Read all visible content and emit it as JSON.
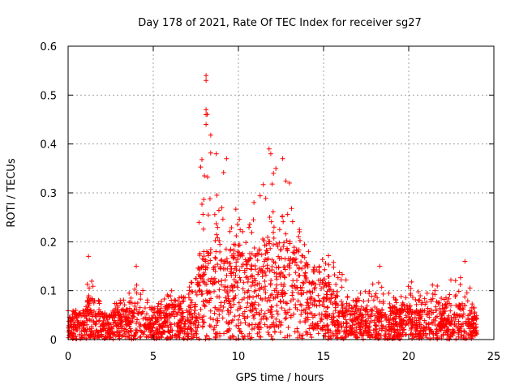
{
  "chart_data": {
    "type": "scatter",
    "title": "Day 178 of 2021, Rate Of TEC Index for receiver sg27",
    "xlabel": "GPS time / hours",
    "ylabel": "ROTI / TECUs",
    "xlim": [
      0,
      25
    ],
    "ylim": [
      0,
      0.6
    ],
    "xticks": [
      0,
      5,
      10,
      15,
      20,
      25
    ],
    "xtick_labels": [
      "0",
      "5",
      "10",
      "15",
      "20",
      "25"
    ],
    "yticks": [
      0,
      0.1,
      0.2,
      0.3,
      0.4,
      0.5,
      0.6
    ],
    "ytick_labels": [
      "0",
      "0.1",
      "0.2",
      "0.3",
      "0.4",
      "0.5",
      "0.6"
    ],
    "grid": true,
    "marker": "+",
    "color": "#ff0000",
    "series": [
      {
        "name": "ROTI",
        "x_range": [
          0,
          24
        ],
        "envelope": {
          "x": [
            0,
            0.5,
            1,
            1.2,
            1.5,
            2,
            2.5,
            3,
            3.5,
            4,
            4.5,
            5,
            5.5,
            6,
            6.5,
            7,
            7.5,
            8,
            8.5,
            9,
            9.5,
            10,
            10.5,
            11,
            11.5,
            12,
            12.5,
            13,
            13.5,
            14,
            14.5,
            15,
            15.5,
            16,
            16.5,
            17,
            17.5,
            18,
            18.5,
            19,
            19.5,
            20,
            20.5,
            21,
            21.5,
            22,
            22.5,
            23,
            23.5,
            24
          ],
          "typical": [
            0.04,
            0.05,
            0.06,
            0.09,
            0.08,
            0.05,
            0.05,
            0.06,
            0.06,
            0.08,
            0.05,
            0.05,
            0.06,
            0.07,
            0.07,
            0.09,
            0.1,
            0.18,
            0.17,
            0.16,
            0.17,
            0.18,
            0.16,
            0.17,
            0.2,
            0.2,
            0.2,
            0.2,
            0.18,
            0.15,
            0.14,
            0.12,
            0.1,
            0.08,
            0.07,
            0.06,
            0.06,
            0.06,
            0.06,
            0.06,
            0.06,
            0.07,
            0.06,
            0.06,
            0.06,
            0.07,
            0.07,
            0.07,
            0.07,
            0.04
          ],
          "peak": [
            0.06,
            0.06,
            0.08,
            0.17,
            0.12,
            0.07,
            0.07,
            0.08,
            0.09,
            0.15,
            0.11,
            0.07,
            0.08,
            0.1,
            0.1,
            0.11,
            0.13,
            0.54,
            0.38,
            0.37,
            0.3,
            0.26,
            0.25,
            0.32,
            0.39,
            0.37,
            0.36,
            0.32,
            0.24,
            0.2,
            0.18,
            0.21,
            0.17,
            0.14,
            0.12,
            0.1,
            0.1,
            0.12,
            0.14,
            0.1,
            0.09,
            0.14,
            0.1,
            0.09,
            0.12,
            0.11,
            0.13,
            0.16,
            0.12,
            0.05
          ]
        },
        "notable_points": [
          {
            "x": 8.1,
            "y": 0.54
          },
          {
            "x": 8.1,
            "y": 0.53
          },
          {
            "x": 8.1,
            "y": 0.47
          },
          {
            "x": 8.1,
            "y": 0.46
          },
          {
            "x": 8.1,
            "y": 0.44
          },
          {
            "x": 8.7,
            "y": 0.38
          },
          {
            "x": 9.3,
            "y": 0.37
          },
          {
            "x": 11.8,
            "y": 0.39
          },
          {
            "x": 11.9,
            "y": 0.38
          },
          {
            "x": 12.2,
            "y": 0.35
          },
          {
            "x": 12.6,
            "y": 0.37
          },
          {
            "x": 1.2,
            "y": 0.17
          },
          {
            "x": 4.0,
            "y": 0.15
          },
          {
            "x": 18.3,
            "y": 0.15
          },
          {
            "x": 23.3,
            "y": 0.16
          }
        ]
      }
    ]
  }
}
